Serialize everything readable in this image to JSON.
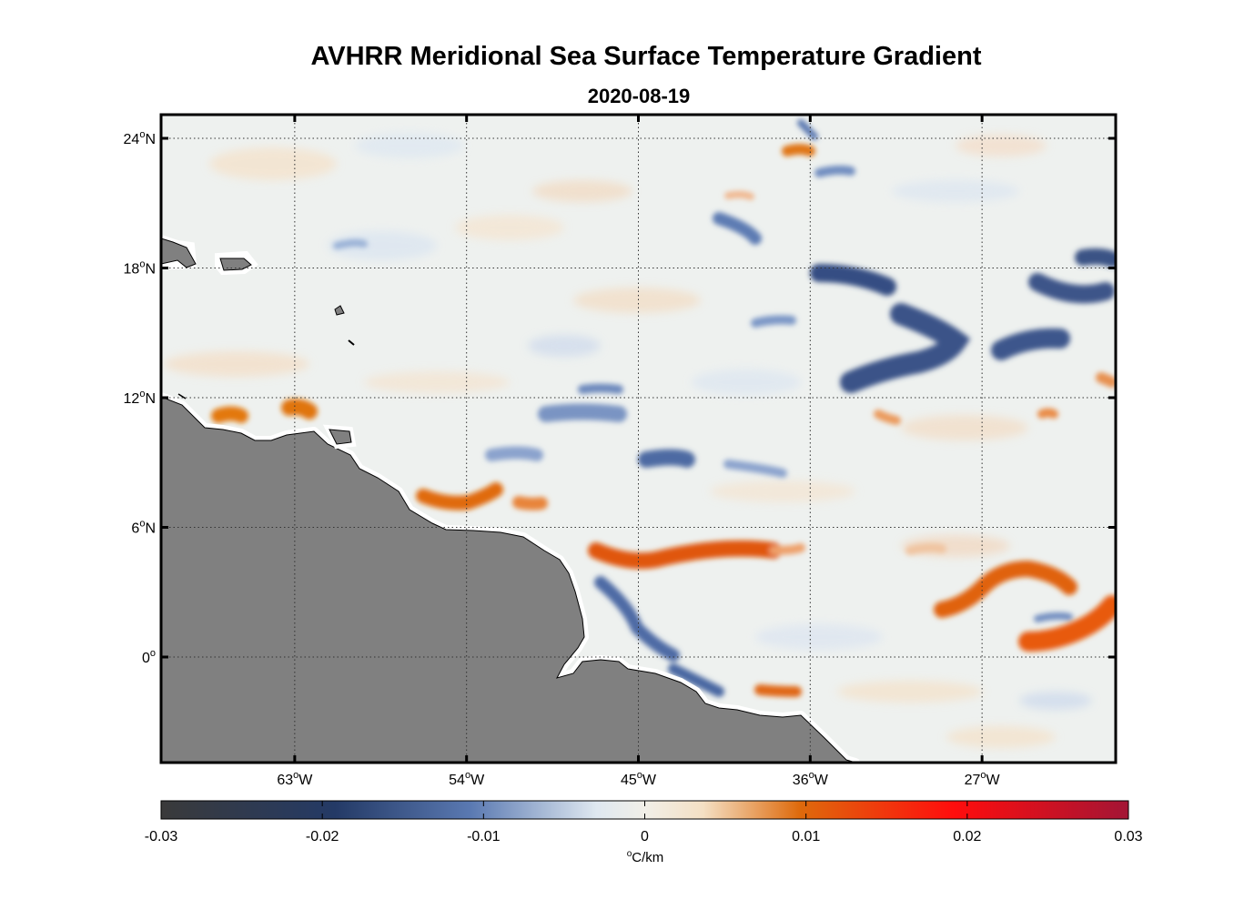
{
  "title": "AVHRR Meridional Sea Surface Temperature Gradient",
  "subtitle": "2020-08-19",
  "map": {
    "lon_range": [
      -70,
      -20
    ],
    "lat_range": [
      -5,
      25
    ],
    "x_ticks": [
      {
        "lon": -63,
        "label": "63",
        "hemi": "W"
      },
      {
        "lon": -54,
        "label": "54",
        "hemi": "W"
      },
      {
        "lon": -45,
        "label": "45",
        "hemi": "W"
      },
      {
        "lon": -36,
        "label": "36",
        "hemi": "W"
      },
      {
        "lon": -27,
        "label": "27",
        "hemi": "W"
      }
    ],
    "y_ticks": [
      {
        "lat": 24,
        "label": "24",
        "hemi": "N"
      },
      {
        "lat": 18,
        "label": "18",
        "hemi": "N"
      },
      {
        "lat": 12,
        "label": "12",
        "hemi": "N"
      },
      {
        "lat": 6,
        "label": "6",
        "hemi": "N"
      },
      {
        "lat": 0,
        "label": "0",
        "hemi": ""
      }
    ],
    "degree_symbol": "o",
    "land_color": "#808080",
    "grid": "dotted"
  },
  "colorbar": {
    "min": -0.03,
    "max": 0.03,
    "ticks": [
      "-0.03",
      "-0.02",
      "-0.01",
      "0",
      "0.01",
      "0.02",
      "0.03"
    ],
    "units_degree": "o",
    "units": "C/km",
    "colors": [
      "#3a3a3a",
      "#243a66",
      "#5a79b2",
      "#e9eff3",
      "#f1e3cf",
      "#de6a0c",
      "#ff0d0d",
      "#a31535"
    ]
  }
}
